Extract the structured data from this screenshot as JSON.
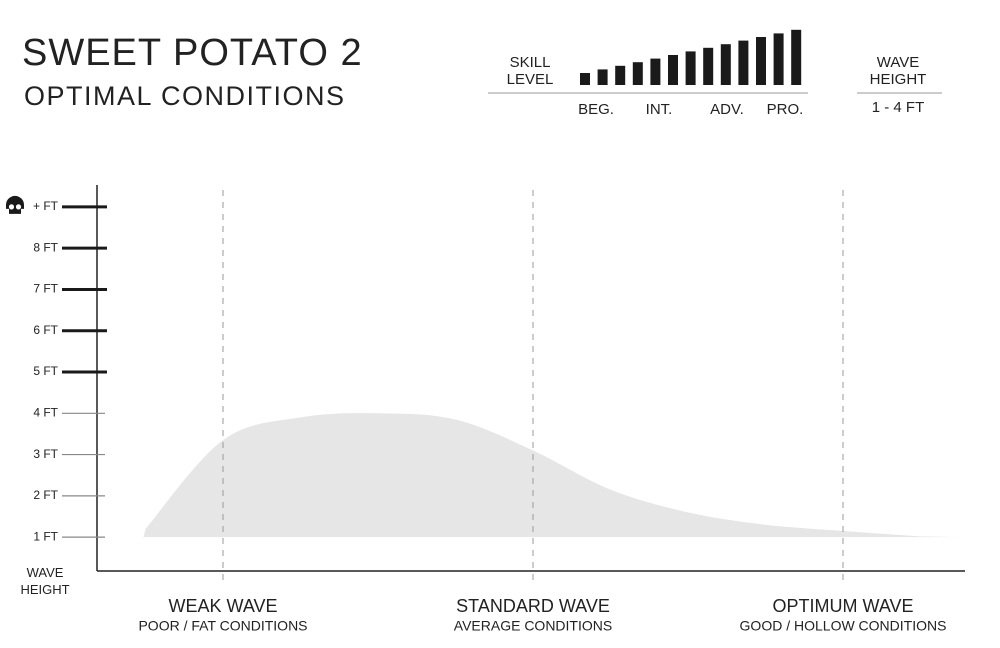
{
  "header": {
    "title": "SWEET POTATO 2",
    "subtitle": "OPTIMAL CONDITIONS",
    "skill": {
      "label": "SKILL LEVEL",
      "levels": [
        "BEG.",
        "INT.",
        "ADV.",
        "PRO."
      ]
    },
    "wave_height": {
      "label": "WAVE HEIGHT",
      "value": "1 - 4 FT"
    }
  },
  "chart_data": {
    "type": "area",
    "y_label": "WAVE HEIGHT",
    "categories": [
      null,
      "WEAK WAVE",
      null,
      null,
      null,
      "STANDARD WAVE",
      null,
      null,
      null,
      "OPTIMUM WAVE",
      null
    ],
    "category_notes": [
      null,
      "POOR / FAT CONDITIONS",
      null,
      null,
      null,
      "AVERAGE CONDITIONS",
      null,
      null,
      null,
      "GOOD / HOLLOW CONDITIONS",
      null
    ],
    "baseline": 1,
    "values": [
      1.2,
      3.35,
      3.9,
      4.0,
      3.85,
      3.1,
      2.15,
      1.6,
      1.3,
      1.15,
      1.02
    ],
    "color": "#e6e6e6",
    "ylim": [
      0.18,
      9.53
    ],
    "yticks": [
      {
        "value": 1,
        "label": "1 FT"
      },
      {
        "value": 2,
        "label": "2 FT"
      },
      {
        "value": 3,
        "label": "3 FT"
      },
      {
        "value": 4,
        "label": "4 FT"
      },
      {
        "value": 5,
        "label": "5 FT"
      },
      {
        "value": 6,
        "label": "6 FT"
      },
      {
        "value": 7,
        "label": "7 FT"
      },
      {
        "value": 8,
        "label": "8 FT"
      },
      {
        "value": 9,
        "label": "+ FT"
      }
    ]
  }
}
